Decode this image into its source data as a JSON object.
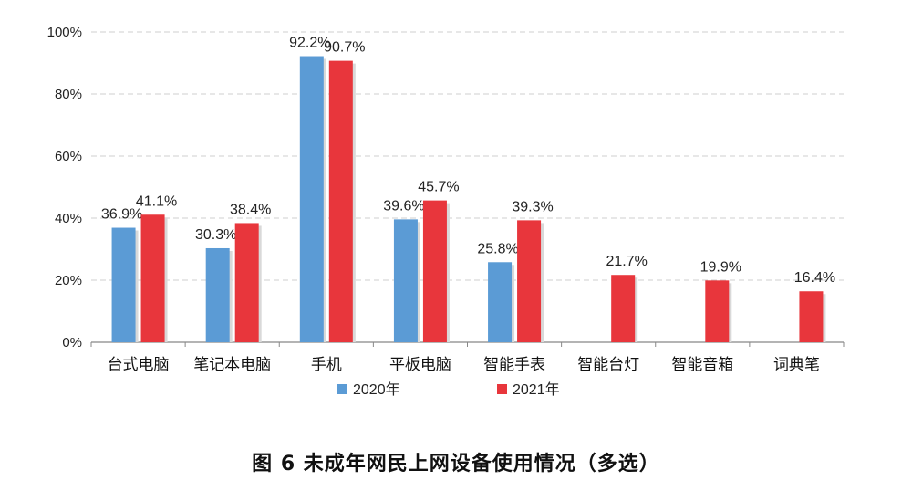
{
  "caption": "图 6 未成年网民上网设备使用情况（多选）",
  "chart_data": {
    "type": "bar",
    "categories": [
      "台式电脑",
      "笔记本电脑",
      "手机",
      "平板电脑",
      "智能手表",
      "智能台灯",
      "智能音箱",
      "词典笔"
    ],
    "series": [
      {
        "name": "2020年",
        "color": "#5b9bd5",
        "values": [
          36.9,
          30.3,
          92.2,
          39.6,
          25.8,
          null,
          null,
          null
        ],
        "labels": [
          "36.9%",
          "30.3%",
          "92.2%",
          "39.6%",
          "25.8%",
          null,
          null,
          null
        ]
      },
      {
        "name": "2021年",
        "color": "#e8363c",
        "values": [
          41.1,
          38.4,
          90.7,
          45.7,
          39.3,
          21.7,
          19.9,
          16.4
        ],
        "labels": [
          "41.1%",
          "38.4%",
          "90.7%",
          "45.7%",
          "39.3%",
          "21.7%",
          "19.9%",
          "16.4%"
        ]
      }
    ],
    "ylim": [
      0,
      100
    ],
    "yticks": [
      0,
      20,
      40,
      60,
      80,
      100
    ],
    "ytick_labels": [
      "0%",
      "20%",
      "40%",
      "60%",
      "80%",
      "100%"
    ],
    "grid": true,
    "legend_position": "bottom"
  }
}
